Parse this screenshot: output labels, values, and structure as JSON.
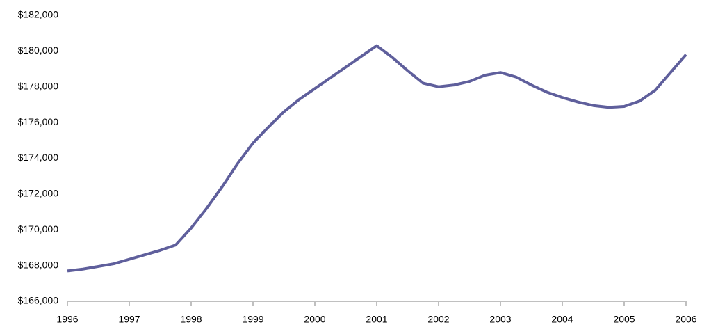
{
  "chart_data": {
    "type": "line",
    "x": [
      1996,
      1996.25,
      1996.5,
      1996.75,
      1997,
      1997.25,
      1997.5,
      1997.75,
      1998,
      1998.25,
      1998.5,
      1998.75,
      1999,
      1999.25,
      1999.5,
      1999.75,
      2000,
      2000.25,
      2000.5,
      2000.75,
      2001,
      2001.25,
      2001.5,
      2001.75,
      2002,
      2002.25,
      2002.5,
      2002.75,
      2003,
      2003.25,
      2003.5,
      2003.75,
      2004,
      2004.25,
      2004.5,
      2004.75,
      2005,
      2005.25,
      2005.5,
      2005.75,
      2006
    ],
    "series": [
      {
        "color": "#5f5f9c",
        "values": [
          167700,
          167800,
          167950,
          168100,
          168350,
          168600,
          168850,
          169150,
          170100,
          171200,
          172400,
          173700,
          174850,
          175750,
          176600,
          177300,
          177900,
          178500,
          179100,
          179700,
          180300,
          179650,
          178900,
          178200,
          178000,
          178100,
          178300,
          178650,
          178800,
          178550,
          178100,
          177700,
          177400,
          177150,
          176950,
          176850,
          176900,
          177200,
          177800,
          178800,
          179800
        ]
      }
    ],
    "xlim": [
      1996,
      2006
    ],
    "xticks": [
      1996,
      1997,
      1998,
      1999,
      2000,
      2001,
      2002,
      2003,
      2004,
      2005,
      2006
    ],
    "ylim": [
      166000,
      182000
    ],
    "yticks": [
      {
        "value": 166000,
        "label": "$166,000"
      },
      {
        "value": 168000,
        "label": "$168,000"
      },
      {
        "value": 170000,
        "label": "$170,000"
      },
      {
        "value": 172000,
        "label": "$172,000"
      },
      {
        "value": 174000,
        "label": "$174,000"
      },
      {
        "value": 176000,
        "label": "$176,000"
      },
      {
        "value": 178000,
        "label": "$178,000"
      },
      {
        "value": 180000,
        "label": "$180,000"
      },
      {
        "value": 182000,
        "label": "$182,000"
      }
    ],
    "grid": false
  }
}
